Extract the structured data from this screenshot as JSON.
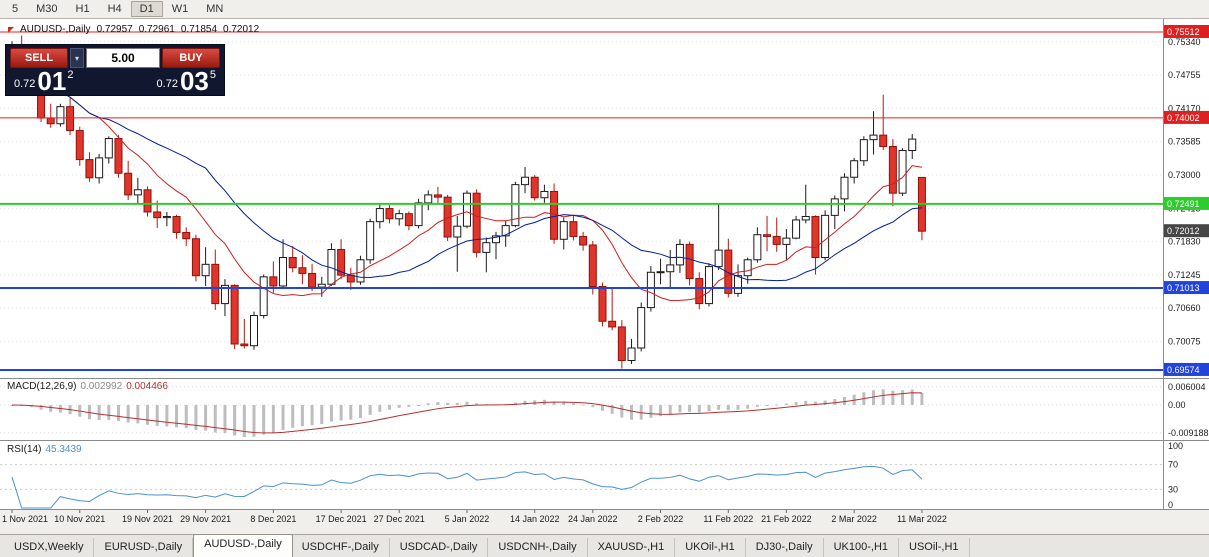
{
  "toolbar": {
    "timeframes": [
      "5",
      "M30",
      "H1",
      "H4",
      "D1",
      "W1",
      "MN"
    ],
    "active_timeframe": "D1"
  },
  "chart": {
    "symbol_title": "AUDUSD-,Daily",
    "open": "0.72957",
    "high": "0.72961",
    "low": "0.71854",
    "close": "0.72012"
  },
  "trade_panel": {
    "sell_label": "SELL",
    "buy_label": "BUY",
    "volume": "5.00",
    "bid_prefix": "0.72",
    "bid_big": "01",
    "bid_sup": "2",
    "ask_prefix": "0.72",
    "ask_big": "03",
    "ask_sup": "5"
  },
  "macd": {
    "name": "MACD(12,26,9)",
    "main_value": "0.002992",
    "signal_value": "0.004466"
  },
  "rsi": {
    "name": "RSI(14)",
    "value": "45.3439"
  },
  "bottom_tabs": {
    "items": [
      "USDX,Weekly",
      "EURUSD-,Daily",
      "AUDUSD-,Daily",
      "USDCHF-,Daily",
      "USDCAD-,Daily",
      "USDCNH-,Daily",
      "XAUUSD-,H1",
      "UKOil-,H1",
      "DJ30-,Daily",
      "UK100-,H1",
      "USOil-,H1"
    ],
    "active_index": 2
  },
  "chart_data": {
    "type": "candlestick",
    "symbol": "AUDUSD",
    "timeframe": "Daily",
    "title": "AUDUSD-,Daily 0.72957 0.72961 0.71854 0.72012",
    "price_axis_gridlines": [
      "0.75340",
      "0.74755",
      "0.74170",
      "0.73585",
      "0.73000",
      "0.72415",
      "0.71830",
      "0.71245",
      "0.70660",
      "0.70075"
    ],
    "macd_axis_labels": [
      "0.006004",
      "0.00",
      "-0.009188"
    ],
    "rsi_axis_labels": [
      "100",
      "70",
      "30",
      "0"
    ],
    "horizontal_levels": [
      {
        "label": "0.75512",
        "price": 0.75512,
        "color": "#e02020",
        "width": 1
      },
      {
        "label": "0.74002",
        "price": 0.74002,
        "color": "#e02020",
        "width": 1
      },
      {
        "label": "0.72491",
        "price": 0.72491,
        "color": "#2ecc2e",
        "width": 2
      },
      {
        "label": "0.71013",
        "price": 0.71013,
        "color": "#2244dd",
        "width": 2
      },
      {
        "label": "0.69574",
        "price": 0.69574,
        "color": "#2244dd",
        "width": 2
      }
    ],
    "bid_marker": {
      "label": "0.72012",
      "price": 0.72012,
      "color": "#464646"
    },
    "x_axis_labels": [
      {
        "index": 0,
        "label": "1 Nov 2021"
      },
      {
        "index": 7,
        "label": "10 Nov 2021"
      },
      {
        "index": 14,
        "label": "19 Nov 2021"
      },
      {
        "index": 20,
        "label": "29 Nov 2021"
      },
      {
        "index": 27,
        "label": "8 Dec 2021"
      },
      {
        "index": 34,
        "label": "17 Dec 2021"
      },
      {
        "index": 40,
        "label": "27 Dec 2021"
      },
      {
        "index": 47,
        "label": "5 Jan 2022"
      },
      {
        "index": 54,
        "label": "14 Jan 2022"
      },
      {
        "index": 60,
        "label": "24 Jan 2022"
      },
      {
        "index": 67,
        "label": "2 Feb 2022"
      },
      {
        "index": 74,
        "label": "11 Feb 2022"
      },
      {
        "index": 80,
        "label": "21 Feb 2022"
      },
      {
        "index": 87,
        "label": "2 Mar 2022"
      },
      {
        "index": 94,
        "label": "11 Mar 2022"
      }
    ],
    "candles_ohlc": [
      [
        0.7518,
        0.7535,
        0.7495,
        0.7523
      ],
      [
        0.7523,
        0.7545,
        0.7485,
        0.749
      ],
      [
        0.749,
        0.751,
        0.7448,
        0.7455
      ],
      [
        0.7455,
        0.747,
        0.7393,
        0.74
      ],
      [
        0.74,
        0.7425,
        0.7383,
        0.739
      ],
      [
        0.739,
        0.7425,
        0.7385,
        0.742
      ],
      [
        0.742,
        0.7435,
        0.737,
        0.7378
      ],
      [
        0.7378,
        0.7385,
        0.7316,
        0.7327
      ],
      [
        0.7327,
        0.734,
        0.7288,
        0.7295
      ],
      [
        0.7295,
        0.7337,
        0.7285,
        0.733
      ],
      [
        0.733,
        0.7368,
        0.732,
        0.7364
      ],
      [
        0.7364,
        0.737,
        0.7295,
        0.7303
      ],
      [
        0.7303,
        0.7325,
        0.7256,
        0.7265
      ],
      [
        0.7265,
        0.7295,
        0.725,
        0.7274
      ],
      [
        0.7274,
        0.728,
        0.7227,
        0.7235
      ],
      [
        0.7235,
        0.7255,
        0.7207,
        0.7225
      ],
      [
        0.7225,
        0.7235,
        0.721,
        0.7227
      ],
      [
        0.7227,
        0.723,
        0.7188,
        0.7199
      ],
      [
        0.7199,
        0.7208,
        0.7175,
        0.7188
      ],
      [
        0.7188,
        0.7195,
        0.7113,
        0.7123
      ],
      [
        0.7123,
        0.7173,
        0.7105,
        0.7143
      ],
      [
        0.7143,
        0.7169,
        0.7063,
        0.7074
      ],
      [
        0.7074,
        0.7117,
        0.7052,
        0.7106
      ],
      [
        0.7106,
        0.7108,
        0.6994,
        0.7003
      ],
      [
        0.7003,
        0.7047,
        0.6995,
        0.7
      ],
      [
        0.7,
        0.706,
        0.6993,
        0.7053
      ],
      [
        0.7053,
        0.7125,
        0.7048,
        0.7121
      ],
      [
        0.7121,
        0.7148,
        0.7093,
        0.7105
      ],
      [
        0.7105,
        0.7187,
        0.71,
        0.7155
      ],
      [
        0.7155,
        0.7175,
        0.7129,
        0.7137
      ],
      [
        0.7137,
        0.7159,
        0.7108,
        0.7127
      ],
      [
        0.7127,
        0.7144,
        0.7096,
        0.7103
      ],
      [
        0.7103,
        0.7121,
        0.7086,
        0.7108
      ],
      [
        0.7108,
        0.718,
        0.7105,
        0.7169
      ],
      [
        0.7169,
        0.7187,
        0.7117,
        0.7124
      ],
      [
        0.7124,
        0.7137,
        0.7098,
        0.7112
      ],
      [
        0.7112,
        0.7158,
        0.7107,
        0.7151
      ],
      [
        0.7151,
        0.7223,
        0.7144,
        0.7218
      ],
      [
        0.7218,
        0.7248,
        0.7206,
        0.7241
      ],
      [
        0.7241,
        0.7247,
        0.7215,
        0.7223
      ],
      [
        0.7223,
        0.7239,
        0.7211,
        0.7232
      ],
      [
        0.7232,
        0.7236,
        0.7203,
        0.7211
      ],
      [
        0.7211,
        0.7258,
        0.7206,
        0.7251
      ],
      [
        0.7251,
        0.7273,
        0.7238,
        0.7265
      ],
      [
        0.7265,
        0.7279,
        0.7248,
        0.7261
      ],
      [
        0.7261,
        0.7265,
        0.7184,
        0.7191
      ],
      [
        0.7191,
        0.7228,
        0.713,
        0.721
      ],
      [
        0.721,
        0.7273,
        0.7206,
        0.7268
      ],
      [
        0.7268,
        0.7275,
        0.7155,
        0.7164
      ],
      [
        0.7164,
        0.719,
        0.7129,
        0.7181
      ],
      [
        0.7181,
        0.72,
        0.7152,
        0.7193
      ],
      [
        0.7193,
        0.722,
        0.7174,
        0.7211
      ],
      [
        0.7211,
        0.7288,
        0.7208,
        0.7283
      ],
      [
        0.7283,
        0.7314,
        0.7268,
        0.7296
      ],
      [
        0.7296,
        0.73,
        0.7255,
        0.726
      ],
      [
        0.726,
        0.7283,
        0.7251,
        0.7271
      ],
      [
        0.7271,
        0.7285,
        0.7179,
        0.7187
      ],
      [
        0.7187,
        0.7225,
        0.7169,
        0.7218
      ],
      [
        0.7218,
        0.7228,
        0.7185,
        0.7192
      ],
      [
        0.7192,
        0.72,
        0.7167,
        0.7177
      ],
      [
        0.7177,
        0.7184,
        0.709,
        0.7104
      ],
      [
        0.7104,
        0.7111,
        0.7034,
        0.7043
      ],
      [
        0.7043,
        0.7103,
        0.7027,
        0.7033
      ],
      [
        0.7033,
        0.7045,
        0.696,
        0.6974
      ],
      [
        0.6974,
        0.7012,
        0.6968,
        0.6996
      ],
      [
        0.6996,
        0.7076,
        0.699,
        0.7067
      ],
      [
        0.7067,
        0.714,
        0.706,
        0.7129
      ],
      [
        0.7129,
        0.7153,
        0.7108,
        0.713
      ],
      [
        0.713,
        0.7168,
        0.71,
        0.7142
      ],
      [
        0.7142,
        0.7187,
        0.7128,
        0.7178
      ],
      [
        0.7178,
        0.7183,
        0.7106,
        0.7118
      ],
      [
        0.7118,
        0.7129,
        0.7064,
        0.7074
      ],
      [
        0.7074,
        0.7145,
        0.7069,
        0.7139
      ],
      [
        0.7139,
        0.7249,
        0.7133,
        0.7168
      ],
      [
        0.7168,
        0.7188,
        0.7085,
        0.7092
      ],
      [
        0.7092,
        0.7143,
        0.7086,
        0.7123
      ],
      [
        0.7123,
        0.7155,
        0.7109,
        0.7151
      ],
      [
        0.7151,
        0.7208,
        0.7146,
        0.7195
      ],
      [
        0.7195,
        0.7228,
        0.7166,
        0.7192
      ],
      [
        0.7192,
        0.7225,
        0.7165,
        0.7178
      ],
      [
        0.7178,
        0.7205,
        0.7151,
        0.7189
      ],
      [
        0.7189,
        0.7228,
        0.7187,
        0.7221
      ],
      [
        0.7221,
        0.7283,
        0.7215,
        0.7227
      ],
      [
        0.7227,
        0.7229,
        0.7125,
        0.7155
      ],
      [
        0.7155,
        0.7238,
        0.715,
        0.7229
      ],
      [
        0.7229,
        0.7264,
        0.7205,
        0.7258
      ],
      [
        0.7258,
        0.7303,
        0.7236,
        0.7296
      ],
      [
        0.7296,
        0.733,
        0.7285,
        0.7325
      ],
      [
        0.7325,
        0.7368,
        0.7316,
        0.7362
      ],
      [
        0.7362,
        0.7412,
        0.7336,
        0.737
      ],
      [
        0.737,
        0.7441,
        0.7344,
        0.735
      ],
      [
        0.735,
        0.7363,
        0.7245,
        0.7268
      ],
      [
        0.7268,
        0.7347,
        0.7263,
        0.7343
      ],
      [
        0.7343,
        0.7372,
        0.7328,
        0.7363
      ],
      [
        0.72957,
        0.72961,
        0.71854,
        0.72012
      ]
    ],
    "indicators": {
      "macd": {
        "params": "12,26,9",
        "main": 0.002992,
        "signal": 0.004466
      },
      "rsi": {
        "params": "14",
        "value": 45.3439
      }
    },
    "colors": {
      "bull": "#ffffff",
      "bear": "#df352b",
      "bear_border": "#8f120a",
      "bull_border": "#1a1a1a",
      "ma_fast": "#cc1f1f",
      "ma_slow": "#001e9c",
      "macd_histogram": "#bdbdbd",
      "macd_signal": "#b43030",
      "rsi_line": "#4a90d2"
    }
  }
}
